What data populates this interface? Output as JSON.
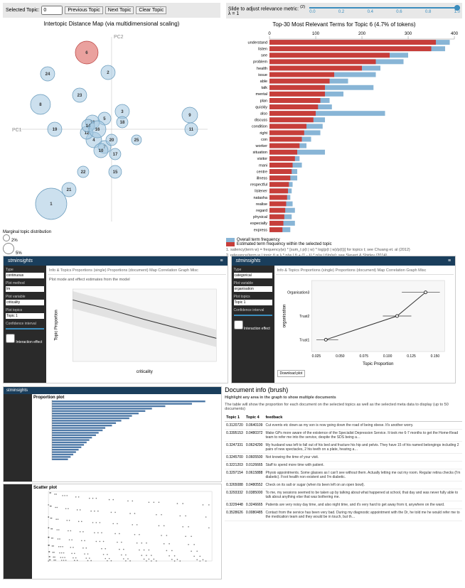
{
  "toolbar": {
    "selected_label": "Selected Topic:",
    "selected_value": "0",
    "prev": "Previous Topic",
    "next": "Next Topic",
    "clear": "Clear Topic"
  },
  "intertopic": {
    "title": "Intertopic Distance Map (via multidimensional scaling)",
    "axis_x": "PC1",
    "axis_y": "PC2",
    "bubbles": [
      {
        "id": 1,
        "x": 60,
        "y": 245,
        "r": 22,
        "fill": "#a3c7e0",
        "stroke": "#6699bb"
      },
      {
        "id": 2,
        "x": 140,
        "y": 60,
        "r": 10,
        "fill": "#a3c7e0",
        "stroke": "#6699bb"
      },
      {
        "id": 3,
        "x": 160,
        "y": 115,
        "r": 10,
        "fill": "#a3c7e0",
        "stroke": "#6699bb"
      },
      {
        "id": 4,
        "x": 120,
        "y": 155,
        "r": 11,
        "fill": "#a3c7e0",
        "stroke": "#6699bb"
      },
      {
        "id": 5,
        "x": 135,
        "y": 125,
        "r": 9,
        "fill": "#a3c7e0",
        "stroke": "#6699bb"
      },
      {
        "id": 6,
        "x": 110,
        "y": 32,
        "r": 16,
        "fill": "#d9534f",
        "stroke": "#b73d3a"
      },
      {
        "id": 7,
        "x": 135,
        "y": 165,
        "r": 9,
        "fill": "#a3c7e0",
        "stroke": "#6699bb"
      },
      {
        "id": 8,
        "x": 45,
        "y": 105,
        "r": 14,
        "fill": "#a3c7e0",
        "stroke": "#6699bb"
      },
      {
        "id": 9,
        "x": 255,
        "y": 120,
        "r": 11,
        "fill": "#a3c7e0",
        "stroke": "#6699bb"
      },
      {
        "id": 10,
        "x": 130,
        "y": 170,
        "r": 10,
        "fill": "#a3c7e0",
        "stroke": "#6699bb"
      },
      {
        "id": 11,
        "x": 257,
        "y": 140,
        "r": 9,
        "fill": "#a3c7e0",
        "stroke": "#6699bb"
      },
      {
        "id": 12,
        "x": 110,
        "y": 145,
        "r": 9,
        "fill": "#a3c7e0",
        "stroke": "#6699bb"
      },
      {
        "id": 13,
        "x": 118,
        "y": 130,
        "r": 10,
        "fill": "#a3c7e0",
        "stroke": "#6699bb"
      },
      {
        "id": 14,
        "x": 112,
        "y": 135,
        "r": 9,
        "fill": "#a3c7e0",
        "stroke": "#6699bb"
      },
      {
        "id": 15,
        "x": 150,
        "y": 200,
        "r": 9,
        "fill": "#a3c7e0",
        "stroke": "#6699bb"
      },
      {
        "id": 16,
        "x": 125,
        "y": 140,
        "r": 12,
        "fill": "#a3c7e0",
        "stroke": "#6699bb"
      },
      {
        "id": 17,
        "x": 150,
        "y": 175,
        "r": 8,
        "fill": "#a3c7e0",
        "stroke": "#6699bb"
      },
      {
        "id": 18,
        "x": 160,
        "y": 130,
        "r": 8,
        "fill": "#a3c7e0",
        "stroke": "#6699bb"
      },
      {
        "id": 19,
        "x": 65,
        "y": 140,
        "r": 10,
        "fill": "#a3c7e0",
        "stroke": "#6699bb"
      },
      {
        "id": 20,
        "x": 145,
        "y": 155,
        "r": 8,
        "fill": "#a3c7e0",
        "stroke": "#6699bb"
      },
      {
        "id": 21,
        "x": 85,
        "y": 225,
        "r": 10,
        "fill": "#a3c7e0",
        "stroke": "#6699bb"
      },
      {
        "id": 22,
        "x": 105,
        "y": 200,
        "r": 8,
        "fill": "#a3c7e0",
        "stroke": "#6699bb"
      },
      {
        "id": 23,
        "x": 100,
        "y": 92,
        "r": 10,
        "fill": "#a3c7e0",
        "stroke": "#6699bb"
      },
      {
        "id": 24,
        "x": 55,
        "y": 62,
        "r": 10,
        "fill": "#a3c7e0",
        "stroke": "#6699bb"
      },
      {
        "id": 25,
        "x": 180,
        "y": 155,
        "r": 7,
        "fill": "#a3c7e0",
        "stroke": "#6699bb"
      }
    ],
    "marginal_label": "Marginal topic distribution",
    "marginal_items": [
      {
        "pct": "2%",
        "d": 10
      },
      {
        "pct": "5%",
        "d": 16
      },
      {
        "pct": "10%",
        "d": 24
      }
    ]
  },
  "slider": {
    "label1": "Slide to adjust relevance metric:",
    "label2": "(2)",
    "lambda": "λ = 1",
    "ticks": [
      "0.0",
      "0.2",
      "0.4",
      "0.6",
      "0.8",
      "1.0"
    ],
    "handle_pos": 1.0
  },
  "bars": {
    "title": "Top-30 Most Relevant Terms for Topic 6 (4.7% of tokens)",
    "xticks": [
      0,
      100,
      200,
      300,
      400
    ],
    "xmax": 400,
    "color_topic": "#c73e3a",
    "color_overall": "#88b5d6",
    "terms": [
      {
        "label": "understand",
        "topic": 360,
        "overall": 390
      },
      {
        "label": "listen",
        "topic": 350,
        "overall": 380
      },
      {
        "label": "see",
        "topic": 260,
        "overall": 300
      },
      {
        "label": "problem",
        "topic": 230,
        "overall": 290
      },
      {
        "label": "health",
        "topic": 200,
        "overall": 240
      },
      {
        "label": "issue",
        "topic": 140,
        "overall": 230
      },
      {
        "label": "able",
        "topic": 130,
        "overall": 170
      },
      {
        "label": "talk",
        "topic": 120,
        "overall": 225
      },
      {
        "label": "mental",
        "topic": 120,
        "overall": 160
      },
      {
        "label": "plan",
        "topic": 110,
        "overall": 130
      },
      {
        "label": "quickly",
        "topic": 105,
        "overall": 135
      },
      {
        "label": "also",
        "topic": 100,
        "overall": 250
      },
      {
        "label": "discuss",
        "topic": 95,
        "overall": 120
      },
      {
        "label": "condition",
        "topic": 80,
        "overall": 115
      },
      {
        "label": "right",
        "topic": 75,
        "overall": 110
      },
      {
        "label": "con",
        "topic": 70,
        "overall": 90
      },
      {
        "label": "worker",
        "topic": 65,
        "overall": 80
      },
      {
        "label": "situation",
        "topic": 60,
        "overall": 120
      },
      {
        "label": "visitor",
        "topic": 55,
        "overall": 65
      },
      {
        "label": "mani",
        "topic": 50,
        "overall": 70
      },
      {
        "label": "centre",
        "topic": 48,
        "overall": 60
      },
      {
        "label": "illness",
        "topic": 45,
        "overall": 60
      },
      {
        "label": "respectful",
        "topic": 42,
        "overall": 50
      },
      {
        "label": "listener",
        "topic": 40,
        "overall": 48
      },
      {
        "label": "natasha",
        "topic": 38,
        "overall": 45
      },
      {
        "label": "realise",
        "topic": 36,
        "overall": 50
      },
      {
        "label": "regard",
        "topic": 34,
        "overall": 55
      },
      {
        "label": "physical",
        "topic": 32,
        "overall": 48
      },
      {
        "label": "especially",
        "topic": 30,
        "overall": 55
      },
      {
        "label": "express",
        "topic": 28,
        "overall": 45
      }
    ],
    "legend_overall": "Overall term frequency",
    "legend_topic": "Estimated term frequency within the selected topic",
    "foot1": "1. saliency(term w) = frequency(w) * [sum_t p(t | w) * log(p(t | w)/p(t))] for topics t; see Chuang et. al (2012)",
    "foot2": "2. relevance(term w | topic t) = λ * p(w | t) + (1 - λ) * p(w | t)/p(w); see Sievert & Shirley (2014)"
  },
  "mid_left": {
    "header": "stminsights",
    "tabs": "Info & Topics    Proportions (single)    Proportions (document)    Map    Correlation Graph    Misc",
    "subhead": "Plot mode and effect estimates from the model",
    "sidebar": {
      "type_label": "Type",
      "type_value": "continuous",
      "model_label": "Plot method",
      "model_value": "lm",
      "var_label": "Plot variable",
      "var_value": "criticality",
      "topics_label": "Plot topics",
      "topics_value": "Topic 1",
      "ci_label": "Confidence interval",
      "ci_value": "",
      "effect_label": "Interaction effect"
    },
    "chart": {
      "xlabel": "criticality",
      "ylabel": "Topic Proportion",
      "xlim": [
        1,
        5
      ],
      "ylim": [
        0.0,
        0.1
      ],
      "line": [
        [
          1,
          0.085
        ],
        [
          2,
          0.072
        ],
        [
          3,
          0.058
        ],
        [
          4,
          0.045
        ],
        [
          5,
          0.032
        ]
      ],
      "band_color": "#d8d8d8",
      "line_color": "#333333"
    }
  },
  "mid_right": {
    "header": "stminsights",
    "tabs": "Info & Topics    Proportions (single)    Proportions (document)    Map    Correlation Graph    Misc",
    "sidebar": {
      "type_label": "Type",
      "type_value": "categorical",
      "var_label": "Plot variable",
      "var_value": "organisation",
      "topics_label": "Plot topics",
      "topics_value": "Topic 1",
      "ci_label": "Confidence interval",
      "effect_label": "Interaction effect"
    },
    "chart": {
      "xlabel": "Topic Proportion",
      "ylabel": "organisation",
      "xticks": [
        "0.025",
        "0.050",
        "0.075",
        "0.100",
        "0.125",
        "0.150"
      ],
      "ycats": [
        "Organisation3",
        "Trust2",
        "Trust1"
      ],
      "points": [
        [
          0.035,
          2
        ],
        [
          0.11,
          1
        ],
        [
          0.14,
          0
        ]
      ],
      "errs": [
        [
          0.025,
          0.048
        ],
        [
          0.095,
          0.125
        ],
        [
          0.115,
          0.155
        ]
      ],
      "line_color": "#333333"
    },
    "download": "Download plot"
  },
  "bottom_left": {
    "prop_title": "Proportion plot",
    "scatter_title": "Scatter plot",
    "prop_bars": {
      "n": 25,
      "max": 0.12,
      "values": [
        0.115,
        0.105,
        0.085,
        0.075,
        0.07,
        0.065,
        0.06,
        0.058,
        0.052,
        0.048,
        0.045,
        0.04,
        0.038,
        0.035,
        0.033,
        0.03,
        0.028,
        0.026,
        0.024,
        0.022,
        0.02,
        0.018,
        0.016,
        0.014,
        0.012
      ],
      "color": "#4e79a7"
    },
    "scatter": {
      "n": 200,
      "color": "#222222"
    }
  },
  "doc": {
    "title": "Document info (brush)",
    "hint": "Highlight any area in the graph to show multiple documents",
    "desc": "The table will show the proportion for each document on the selected topics as well as the selected meta data to display (up to 50 documents)",
    "cols": [
      "Topic 1",
      "Topic 4",
      "feedback"
    ],
    "rows": [
      [
        "0.3120720",
        "0.0640109",
        "Cut events etc down as my son is now going down the road of being obese. It's another worry."
      ],
      [
        "0.3395153",
        "0.0480372",
        "Make GPs more aware of the existence of the Specialist Depression Service. It took me 6-7 months to get the Home-Read team to refer me into the service, despite the SDS being a…"
      ],
      [
        "0.3247331",
        "0.0624290",
        "My husband was left to fall out of his bed and fracture his hip and pelvis. They have 15 of his named belongings including 2 pairs of new spectacles, 2 his teeth on a plate, hearing a…"
      ],
      [
        "0.3245700",
        "0.0605500",
        "Not knowing the time of your visit."
      ],
      [
        "0.3221203",
        "0.0126665",
        "Staff to spend more time with patient."
      ],
      [
        "0.3297154",
        "0.0615888",
        "Physio appointments. Some glasses as I can't see without them. Actually letting me out my room. Regular retina checks (I'm diabetic). Foot health non existent and I'm diabetic."
      ],
      [
        "0.3265088",
        "0.0480552",
        "Check on its salt or sugar (when its been left on an open bowl)."
      ],
      [
        "0.3293332",
        "0.0385000",
        "To me, my sessions seemed to be taken up by talking about what happened at school, that day and was never fully able to talk about anything else that was bothering me."
      ],
      [
        "0.3229448",
        "0.3246665",
        "Patients are very noisy day time, and also night time, and it's very hard to get away from it, anywhere on the ward."
      ],
      [
        "0.3528626",
        "0.0080485",
        "Contact from the service has been very bad. During my diagnostic appointment with the Dr, he told me he would refer me to the medication team and they would be in touch, but th…"
      ]
    ]
  }
}
